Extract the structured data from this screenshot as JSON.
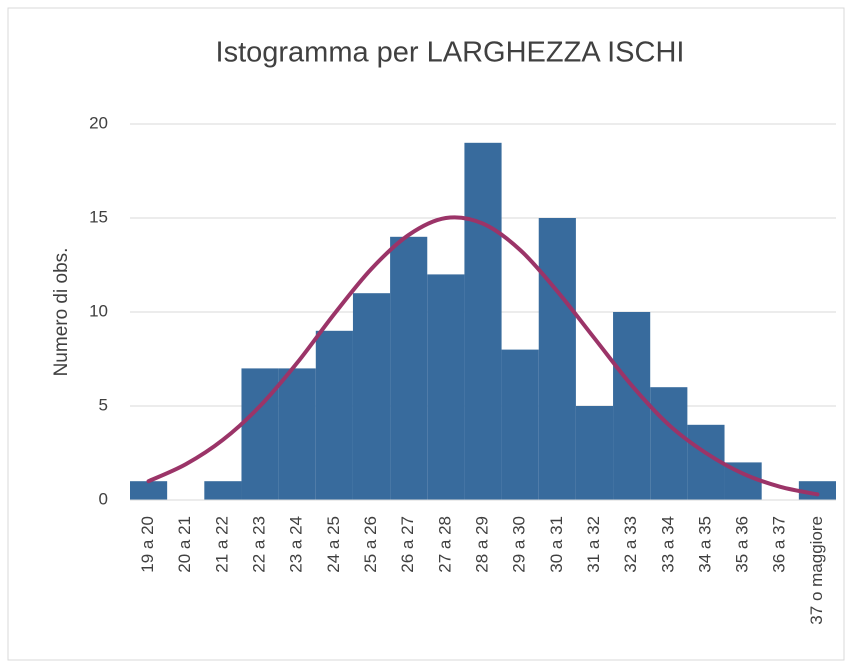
{
  "chart_data": {
    "type": "bar",
    "title": "Istogramma per LARGHEZZA ISCHI",
    "y_label": "Numero di obs.",
    "categories": [
      "19 a 20",
      "20 a 21",
      "21 a 22",
      "22 a 23",
      "23 a 24",
      "24 a 25",
      "25 a 26",
      "26 a 27",
      "27 a 28",
      "28 a 29",
      "29 a 30",
      "30 a 31",
      "31 a 32",
      "32 a 33",
      "33 a 34",
      "34 a 35",
      "35 a 36",
      "36 a 37",
      "37 o maggiore"
    ],
    "values": [
      1,
      0,
      1,
      7,
      7,
      9,
      11,
      14,
      12,
      19,
      8,
      15,
      5,
      10,
      6,
      4,
      2,
      0,
      1
    ],
    "color": "#386b9d",
    "curve": {
      "type": "line",
      "color": "#9b3468",
      "values": [
        1.0,
        1.9,
        3.2,
        5.0,
        7.3,
        9.9,
        12.3,
        14.1,
        15.0,
        14.7,
        13.3,
        11.1,
        8.6,
        6.1,
        4.0,
        2.5,
        1.4,
        0.7,
        0.3
      ]
    },
    "ylim": [
      0,
      20
    ],
    "yticks": [
      0,
      5,
      10,
      15,
      20
    ],
    "grid": true
  }
}
